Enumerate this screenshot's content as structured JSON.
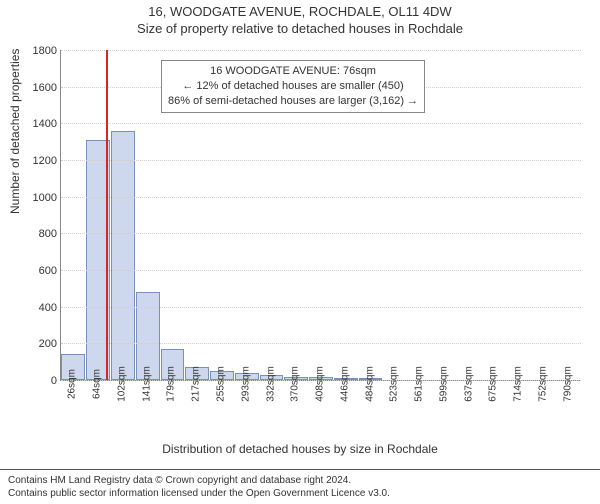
{
  "header": {
    "line1": "16, WOODGATE AVENUE, ROCHDALE, OL11 4DW",
    "line2": "Size of property relative to detached houses in Rochdale"
  },
  "chart": {
    "type": "histogram",
    "ylabel": "Number of detached properties",
    "xlabel": "Distribution of detached houses by size in Rochdale",
    "ylim": [
      0,
      1800
    ],
    "ytick_step": 200,
    "bar_fill": "#cdd8ee",
    "bar_border": "#7a8fba",
    "grid_color": "#cfcfcf",
    "axis_color": "#888888",
    "marker_color": "#d02828",
    "background": "#ffffff",
    "categories": [
      "26sqm",
      "64sqm",
      "102sqm",
      "141sqm",
      "179sqm",
      "217sqm",
      "255sqm",
      "293sqm",
      "332sqm",
      "370sqm",
      "408sqm",
      "446sqm",
      "484sqm",
      "523sqm",
      "561sqm",
      "599sqm",
      "637sqm",
      "675sqm",
      "714sqm",
      "752sqm",
      "790sqm"
    ],
    "values": [
      140,
      1310,
      1360,
      480,
      170,
      70,
      50,
      40,
      25,
      18,
      15,
      10,
      8,
      0,
      0,
      0,
      0,
      0,
      0,
      0,
      0
    ],
    "marker_value": 76,
    "x_min": 26,
    "x_max": 790,
    "annotation": {
      "l1": "16 WOODGATE AVENUE: 76sqm",
      "l2": "← 12% of detached houses are smaller (450)",
      "l3": "86% of semi-detached houses are larger (3,162) →"
    }
  },
  "footer": {
    "l1": "Contains HM Land Registry data © Crown copyright and database right 2024.",
    "l2": "Contains public sector information licensed under the Open Government Licence v3.0."
  }
}
